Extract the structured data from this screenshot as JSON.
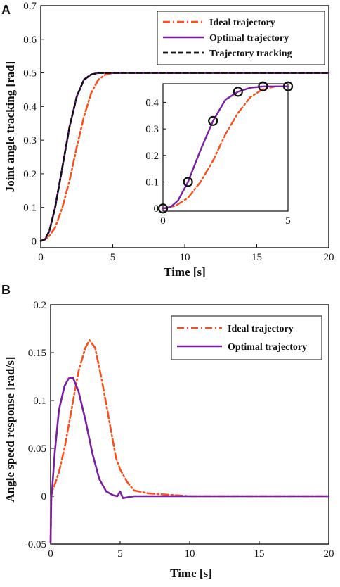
{
  "chart_data": [
    {
      "panel": "A",
      "type": "line",
      "xlabel": "Time [s]",
      "ylabel": "Joint angle tracking [rad]",
      "xlim": [
        0,
        20
      ],
      "ylim": [
        -0.02,
        0.7
      ],
      "xticks": [
        "0",
        "5",
        "10",
        "15",
        "20"
      ],
      "yticks": [
        "0",
        "0.1",
        "0.2",
        "0.3",
        "0.4",
        "0.5",
        "0.6",
        "0.7"
      ],
      "grid": false,
      "legend_position": "top-right",
      "series": [
        {
          "name": "Ideal trajectory",
          "color": "#ff4d1a",
          "dash": "dashdot",
          "x": [
            0,
            0.5,
            1,
            1.5,
            2,
            2.5,
            3,
            3.5,
            4,
            4.5,
            5,
            6,
            8,
            10,
            15,
            20
          ],
          "y": [
            0,
            0.01,
            0.04,
            0.1,
            0.18,
            0.28,
            0.37,
            0.44,
            0.48,
            0.495,
            0.5,
            0.5,
            0.5,
            0.5,
            0.5,
            0.5
          ]
        },
        {
          "name": "Optimal trajectory",
          "color": "#7a1fa2",
          "dash": "solid",
          "x": [
            0,
            0.3,
            0.6,
            1,
            1.5,
            2,
            2.5,
            3,
            3.5,
            4,
            5,
            8,
            10,
            15,
            20
          ],
          "y": [
            0,
            0.005,
            0.03,
            0.1,
            0.22,
            0.34,
            0.43,
            0.48,
            0.495,
            0.5,
            0.5,
            0.5,
            0.5,
            0.5,
            0.5
          ]
        },
        {
          "name": "Trajectory tracking",
          "color": "#111111",
          "dash": "dashed",
          "x": [
            0,
            0.3,
            0.6,
            1,
            1.5,
            2,
            2.5,
            3,
            3.5,
            4,
            5,
            8,
            10,
            15,
            20
          ],
          "y": [
            0,
            0.005,
            0.03,
            0.1,
            0.22,
            0.34,
            0.43,
            0.48,
            0.495,
            0.5,
            0.5,
            0.5,
            0.5,
            0.5,
            0.5
          ]
        }
      ],
      "inset": {
        "xlim": [
          0,
          5
        ],
        "ylim": [
          -0.01,
          0.47
        ],
        "xticks": [
          "0",
          "5"
        ],
        "yticks": [
          "0",
          "0.1",
          "0.2",
          "0.3",
          "0.4"
        ],
        "series": [
          {
            "name": "Ideal trajectory",
            "color": "#ff4d1a",
            "dash": "dashdot",
            "x": [
              0,
              0.5,
              1,
              1.5,
              2,
              2.5,
              3,
              3.5,
              4,
              4.5,
              5
            ],
            "y": [
              0,
              0.01,
              0.04,
              0.1,
              0.18,
              0.28,
              0.36,
              0.42,
              0.45,
              0.46,
              0.46
            ]
          },
          {
            "name": "Optimal trajectory",
            "color": "#7a1fa2",
            "dash": "solid",
            "x": [
              0,
              0.3,
              0.6,
              1,
              1.5,
              2,
              2.5,
              3,
              3.5,
              4,
              4.5,
              5
            ],
            "y": [
              0,
              0.005,
              0.03,
              0.1,
              0.22,
              0.33,
              0.41,
              0.44,
              0.455,
              0.46,
              0.46,
              0.46
            ]
          }
        ],
        "markers": {
          "x": [
            0,
            1,
            2,
            3,
            4,
            5
          ],
          "y": [
            0,
            0.1,
            0.33,
            0.44,
            0.46,
            0.46
          ]
        }
      }
    },
    {
      "panel": "B",
      "type": "line",
      "xlabel": "Time [s]",
      "ylabel": "Angle speed response [rad/s]",
      "xlim": [
        0,
        20
      ],
      "ylim": [
        -0.05,
        0.2
      ],
      "xticks": [
        "0",
        "5",
        "10",
        "15",
        "20"
      ],
      "yticks": [
        "-0.05",
        "0",
        "0.05",
        "0.1",
        "0.15",
        "0.2"
      ],
      "grid": false,
      "legend_position": "top-right",
      "series": [
        {
          "name": "Ideal trajectory",
          "color": "#ff4d1a",
          "dash": "dashdot",
          "x": [
            0,
            0.05,
            0.1,
            0.3,
            0.6,
            1,
            1.5,
            2,
            2.5,
            2.8,
            3.2,
            3.7,
            4.2,
            4.7,
            5,
            5.5,
            6,
            7,
            8,
            10,
            15,
            20
          ],
          "y": [
            -0.048,
            0,
            0.005,
            0.012,
            0.025,
            0.05,
            0.09,
            0.13,
            0.155,
            0.163,
            0.155,
            0.12,
            0.08,
            0.04,
            0.028,
            0.015,
            0.006,
            0.003,
            0.002,
            0,
            0,
            0
          ]
        },
        {
          "name": "Optimal trajectory",
          "color": "#7a1fa2",
          "dash": "solid",
          "x": [
            0,
            0.05,
            0.1,
            0.3,
            0.6,
            1,
            1.3,
            1.6,
            2,
            2.5,
            3,
            3.5,
            4,
            4.5,
            4.8,
            5,
            5.2,
            6,
            10,
            15,
            20
          ],
          "y": [
            -0.048,
            0,
            0.005,
            0.045,
            0.09,
            0.115,
            0.123,
            0.124,
            0.11,
            0.08,
            0.045,
            0.018,
            0.005,
            0.001,
            0,
            0.005,
            -0.002,
            0,
            0,
            0,
            0
          ]
        }
      ]
    }
  ]
}
